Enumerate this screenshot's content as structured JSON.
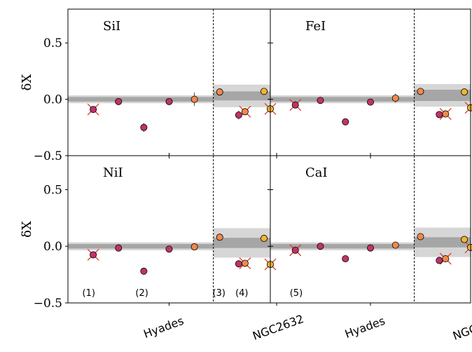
{
  "chart_data": {
    "type": "scatter",
    "layout": "2x2 panels, shared axes",
    "ylabel": "δX",
    "ylim": [
      -0.5,
      0.8
    ],
    "yticks": [
      -0.5,
      0.0,
      0.5
    ],
    "ytick_labels": [
      "−0.5",
      "0.0",
      "0.5"
    ],
    "categories": [
      "Hyades",
      "NGC2632"
    ],
    "x_range": [
      0,
      8
    ],
    "group_divider_x": 5.75,
    "star_x": [
      1,
      2,
      3,
      4,
      5,
      6,
      7,
      8,
      6.75,
      7.75
    ],
    "groups": [
      "Hyades",
      "Hyades",
      "Hyades",
      "Hyades",
      "Hyades",
      "Hyades",
      "Hyades",
      "Hyades",
      "NGC2632",
      "NGC2632"
    ],
    "colors": [
      "#c0336a",
      "#c0336a",
      "#c0336a",
      "#c0336a",
      "#f08a4b",
      "#f08a4b",
      "#f08a4b",
      "#f4b431",
      "#c0336a",
      "#f4b431"
    ],
    "crossed": [
      true,
      false,
      false,
      false,
      false,
      false,
      true,
      true,
      false,
      false
    ],
    "notes": [
      {
        "text": "(1)",
        "x": 0.9
      },
      {
        "text": "(2)",
        "x": 3.0
      },
      {
        "text": "(3)",
        "x": 6.05
      },
      {
        "text": "(4)",
        "x": 6.95
      },
      {
        "text": "(5)",
        "x": 9.1
      }
    ],
    "panels": [
      {
        "title": "SiI",
        "values": [
          -0.09,
          -0.02,
          -0.25,
          -0.02,
          0.0,
          0.065,
          -0.11,
          -0.085,
          -0.14,
          0.07
        ],
        "errors": [
          0.02,
          0.015,
          0.04,
          0.015,
          0.06,
          0.015,
          0.02,
          0.02,
          0.04,
          0.015
        ],
        "hyades_band": {
          "mean": 0.0,
          "inner": 0.02,
          "outer": 0.035
        },
        "ngc_band": {
          "mean": 0.03,
          "inner": 0.04,
          "outer": 0.1
        }
      },
      {
        "title": "FeI",
        "values": [
          -0.05,
          -0.01,
          -0.2,
          -0.025,
          0.01,
          0.07,
          -0.13,
          -0.075,
          -0.135,
          0.065
        ],
        "errors": [
          0.02,
          0.015,
          0.02,
          0.015,
          0.04,
          0.015,
          0.02,
          0.02,
          0.02,
          0.015
        ],
        "hyades_band": {
          "mean": 0.0,
          "inner": 0.02,
          "outer": 0.035
        },
        "ngc_band": {
          "mean": 0.035,
          "inner": 0.05,
          "outer": 0.1
        }
      },
      {
        "title": "NiI",
        "values": [
          -0.075,
          -0.015,
          -0.22,
          -0.025,
          -0.005,
          0.08,
          -0.15,
          -0.16,
          -0.155,
          0.07
        ],
        "errors": [
          0.02,
          0.015,
          0.03,
          0.015,
          0.02,
          0.015,
          0.02,
          0.02,
          0.02,
          0.015
        ],
        "hyades_band": {
          "mean": 0.0,
          "inner": 0.02,
          "outer": 0.035
        },
        "ngc_band": {
          "mean": 0.03,
          "inner": 0.045,
          "outer": 0.13
        }
      },
      {
        "title": "CaI",
        "values": [
          -0.035,
          0.0,
          -0.11,
          -0.015,
          0.01,
          0.085,
          -0.11,
          -0.01,
          -0.125,
          0.06
        ],
        "errors": [
          0.02,
          0.015,
          0.015,
          0.015,
          0.015,
          0.015,
          0.02,
          0.02,
          0.02,
          0.015
        ],
        "hyades_band": {
          "mean": 0.0,
          "inner": 0.02,
          "outer": 0.035
        },
        "ngc_band": {
          "mean": 0.035,
          "inner": 0.045,
          "outer": 0.13
        }
      }
    ]
  }
}
